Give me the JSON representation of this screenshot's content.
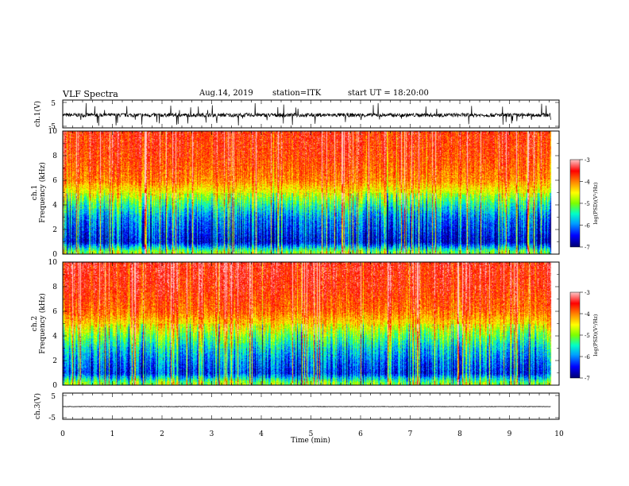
{
  "header": {
    "title": "VLF Spectra",
    "date": "Aug.14, 2019",
    "station": "station=ITK",
    "start": "start UT = 18:20:00"
  },
  "colors": {
    "colormap": [
      "#000070",
      "#0000ff",
      "#00a0ff",
      "#00ffc8",
      "#7cff00",
      "#ffff00",
      "#ff8000",
      "#ff0000",
      "#ffc8c8"
    ]
  },
  "chart_data": [
    {
      "type": "line",
      "panel": "ch1_waveform",
      "ylabel": "ch.1(V)",
      "ylim": [
        -5,
        5
      ],
      "ytick_labels": [
        "5",
        "-5"
      ],
      "x_range_min": [
        0,
        9.83
      ],
      "baseline": -0.3,
      "noise_amplitude": 0.8,
      "burst_max": 5
    },
    {
      "type": "heatmap",
      "panel": "ch1_spectrogram",
      "ylabel": "ch.1\nFrequency (kHz)",
      "ylim": [
        0,
        10
      ],
      "ytick_labels": [
        "0",
        "2",
        "4",
        "6",
        "8",
        "10"
      ],
      "x_range_min": [
        0,
        9.83
      ],
      "color_range": [
        -7,
        -3
      ],
      "colorbar_ticks": [
        "-3",
        "-4",
        "-5",
        "-6",
        "-7"
      ],
      "colorbar_label": "log(PSD)(V²/Hz)",
      "summary_log_psd_by_freq_khz": [
        [
          0.2,
          -5.0
        ],
        [
          1,
          -6.6
        ],
        [
          2,
          -6.3
        ],
        [
          3,
          -6.0
        ],
        [
          4,
          -5.4
        ],
        [
          5,
          -4.6
        ],
        [
          6,
          -4.0
        ],
        [
          8,
          -3.7
        ],
        [
          10,
          -3.6
        ]
      ]
    },
    {
      "type": "heatmap",
      "panel": "ch2_spectrogram",
      "ylabel": "ch.2\nFrequency (kHz)",
      "ylim": [
        0,
        10
      ],
      "ytick_labels": [
        "0",
        "2",
        "4",
        "6",
        "8",
        "10"
      ],
      "x_range_min": [
        0,
        9.83
      ],
      "color_range": [
        -7,
        -3
      ],
      "colorbar_ticks": [
        "-3",
        "-4",
        "-5",
        "-6",
        "-7"
      ],
      "colorbar_label": "log(PSD)(V²/Hz)",
      "summary_log_psd_by_freq_khz": [
        [
          0.2,
          -5.0
        ],
        [
          1,
          -6.4
        ],
        [
          2,
          -6.1
        ],
        [
          3,
          -5.7
        ],
        [
          4,
          -5.1
        ],
        [
          5,
          -4.4
        ],
        [
          6,
          -3.9
        ],
        [
          8,
          -3.6
        ],
        [
          10,
          -3.5
        ]
      ]
    },
    {
      "type": "line",
      "panel": "ch3_waveform",
      "ylabel": "ch.3(V)",
      "ylim": [
        -5,
        5
      ],
      "ytick_labels": [
        "5",
        "-5"
      ],
      "x_range_min": [
        0,
        9.83
      ],
      "baseline": 0,
      "noise_amplitude": 0.08
    },
    {
      "type": "axis",
      "xlabel": "Time (min)",
      "xlim": [
        0,
        10
      ],
      "xtick_labels": [
        "0",
        "1",
        "2",
        "3",
        "4",
        "5",
        "6",
        "7",
        "8",
        "9",
        "10"
      ]
    }
  ]
}
